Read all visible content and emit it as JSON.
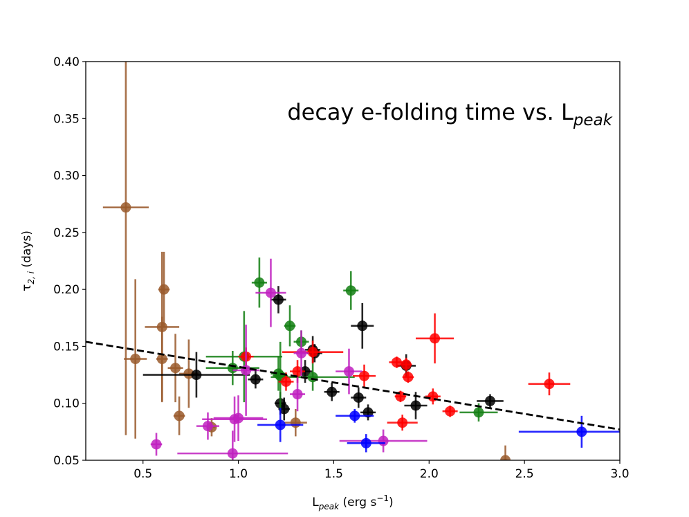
{
  "chart_data": {
    "type": "scatter",
    "title": "decay e-folding time vs. L",
    "title_subscript": "peak",
    "xlabel": "L",
    "xlabel_sub": "peak",
    "xlabel_units": " (erg s",
    "xlabel_sup": "−1",
    "xlabel_close": ")",
    "ylabel": "τ",
    "ylabel_sub": "2, i",
    "ylabel_units": " (days)",
    "xlim": [
      0.2,
      3.0
    ],
    "ylim": [
      0.05,
      0.4
    ],
    "xticks": [
      0.5,
      1.0,
      1.5,
      2.0,
      2.5,
      3.0
    ],
    "xtick_labels": [
      "0.5",
      "1.0",
      "1.5",
      "2.0",
      "2.5",
      "3.0"
    ],
    "yticks": [
      0.05,
      0.1,
      0.15,
      0.2,
      0.25,
      0.3,
      0.35,
      0.4
    ],
    "ytick_labels": [
      "0.05",
      "0.10",
      "0.15",
      "0.20",
      "0.25",
      "0.30",
      "0.35",
      "0.40"
    ],
    "fit_line": {
      "x": [
        0.2,
        3.0
      ],
      "y": [
        0.154,
        0.077
      ],
      "color": "#000000",
      "style": "dashed"
    },
    "series": [
      {
        "name": "brown",
        "color": "#9a5a2c",
        "points": [
          {
            "x": 0.41,
            "y": 0.272,
            "xerr": 0.12,
            "yerr": 0.2
          },
          {
            "x": 0.46,
            "y": 0.139,
            "xerr": 0.06,
            "yerr": 0.07
          },
          {
            "x": 0.61,
            "y": 0.2,
            "xerr": 0.03,
            "yerr": 0.033
          },
          {
            "x": 0.6,
            "y": 0.167,
            "xerr": 0.09,
            "yerr": 0.066
          },
          {
            "x": 0.6,
            "y": 0.139,
            "xerr": 0.03,
            "yerr": 0.037
          },
          {
            "x": 0.67,
            "y": 0.131,
            "xerr": 0.04,
            "yerr": 0.03
          },
          {
            "x": 0.74,
            "y": 0.126,
            "xerr": 0.05,
            "yerr": 0.03
          },
          {
            "x": 0.69,
            "y": 0.089,
            "xerr": 0.03,
            "yerr": 0.017
          },
          {
            "x": 0.86,
            "y": 0.079,
            "xerr": 0.02,
            "yerr": 0.008
          },
          {
            "x": 1.3,
            "y": 0.083,
            "xerr": 0.06,
            "yerr": 0.012
          },
          {
            "x": 2.4,
            "y": 0.05,
            "xerr": 0.01,
            "yerr": 0.013
          }
        ]
      },
      {
        "name": "black",
        "color": "#000000",
        "points": [
          {
            "x": 0.78,
            "y": 0.125,
            "xerr": 0.28,
            "yerr": 0.02
          },
          {
            "x": 1.09,
            "y": 0.121,
            "xerr": 0.04,
            "yerr": 0.008
          },
          {
            "x": 1.21,
            "y": 0.191,
            "xerr": 0.04,
            "yerr": 0.012
          },
          {
            "x": 1.22,
            "y": 0.1,
            "xerr": 0.03,
            "yerr": 0.01
          },
          {
            "x": 1.24,
            "y": 0.095,
            "xerr": 0.03,
            "yerr": 0.01
          },
          {
            "x": 1.35,
            "y": 0.128,
            "xerr": 0.04,
            "yerr": 0.01
          },
          {
            "x": 1.39,
            "y": 0.147,
            "xerr": 0.04,
            "yerr": 0.012
          },
          {
            "x": 1.4,
            "y": 0.144,
            "xerr": 0.04,
            "yerr": 0.008
          },
          {
            "x": 1.49,
            "y": 0.11,
            "xerr": 0.04,
            "yerr": 0.008
          },
          {
            "x": 1.63,
            "y": 0.105,
            "xerr": 0.04,
            "yerr": 0.009
          },
          {
            "x": 1.65,
            "y": 0.168,
            "xerr": 0.06,
            "yerr": 0.02
          },
          {
            "x": 1.68,
            "y": 0.092,
            "xerr": 0.04,
            "yerr": 0.007
          },
          {
            "x": 1.88,
            "y": 0.133,
            "xerr": 0.05,
            "yerr": 0.01
          },
          {
            "x": 1.93,
            "y": 0.098,
            "xerr": 0.06,
            "yerr": 0.012
          },
          {
            "x": 2.32,
            "y": 0.102,
            "xerr": 0.07,
            "yerr": 0.006
          }
        ]
      },
      {
        "name": "green",
        "color": "#137f13",
        "points": [
          {
            "x": 0.97,
            "y": 0.131,
            "xerr": 0.14,
            "yerr": 0.015
          },
          {
            "x": 1.03,
            "y": 0.141,
            "xerr": 0.2,
            "yerr": 0.04
          },
          {
            "x": 1.11,
            "y": 0.206,
            "xerr": 0.04,
            "yerr": 0.022
          },
          {
            "x": 1.21,
            "y": 0.126,
            "xerr": 0.04,
            "yerr": 0.015
          },
          {
            "x": 1.22,
            "y": 0.124,
            "xerr": 0.04,
            "yerr": 0.03
          },
          {
            "x": 1.27,
            "y": 0.168,
            "xerr": 0.03,
            "yerr": 0.018
          },
          {
            "x": 1.33,
            "y": 0.154,
            "xerr": 0.04,
            "yerr": 0.01
          },
          {
            "x": 1.39,
            "y": 0.123,
            "xerr": 0.22,
            "yerr": 0.012
          },
          {
            "x": 1.59,
            "y": 0.199,
            "xerr": 0.04,
            "yerr": 0.017
          },
          {
            "x": 2.26,
            "y": 0.092,
            "xerr": 0.1,
            "yerr": 0.008
          }
        ]
      },
      {
        "name": "red",
        "color": "#ff0000",
        "points": [
          {
            "x": 1.04,
            "y": 0.141,
            "xerr": 0.04,
            "yerr": 0.008
          },
          {
            "x": 1.25,
            "y": 0.119,
            "xerr": 0.04,
            "yerr": 0.008
          },
          {
            "x": 1.31,
            "y": 0.128,
            "xerr": 0.04,
            "yerr": 0.01
          },
          {
            "x": 1.39,
            "y": 0.145,
            "xerr": 0.16,
            "yerr": 0.01
          },
          {
            "x": 1.66,
            "y": 0.124,
            "xerr": 0.06,
            "yerr": 0.01
          },
          {
            "x": 1.83,
            "y": 0.136,
            "xerr": 0.04,
            "yerr": 0.005
          },
          {
            "x": 1.85,
            "y": 0.106,
            "xerr": 0.03,
            "yerr": 0.005
          },
          {
            "x": 1.86,
            "y": 0.083,
            "xerr": 0.08,
            "yerr": 0.007
          },
          {
            "x": 1.88,
            "y": 0.134,
            "xerr": 0.03,
            "yerr": 0.006
          },
          {
            "x": 1.89,
            "y": 0.123,
            "xerr": 0.03,
            "yerr": 0.005
          },
          {
            "x": 2.02,
            "y": 0.106,
            "xerr": 0.04,
            "yerr": 0.007
          },
          {
            "x": 2.03,
            "y": 0.157,
            "xerr": 0.1,
            "yerr": 0.022
          },
          {
            "x": 2.11,
            "y": 0.093,
            "xerr": 0.04,
            "yerr": 0.005
          },
          {
            "x": 2.63,
            "y": 0.117,
            "xerr": 0.11,
            "yerr": 0.01
          }
        ]
      },
      {
        "name": "magenta",
        "color": "#c020c0",
        "points": [
          {
            "x": 0.57,
            "y": 0.064,
            "xerr": 0.03,
            "yerr": 0.01
          },
          {
            "x": 0.84,
            "y": 0.08,
            "xerr": 0.06,
            "yerr": 0.012
          },
          {
            "x": 0.97,
            "y": 0.056,
            "xerr": 0.29,
            "yerr": 0.02
          },
          {
            "x": 0.98,
            "y": 0.086,
            "xerr": 0.17,
            "yerr": 0.02
          },
          {
            "x": 1.0,
            "y": 0.087,
            "xerr": 0.13,
            "yerr": 0.02
          },
          {
            "x": 1.04,
            "y": 0.129,
            "xerr": 0.07,
            "yerr": 0.04
          },
          {
            "x": 1.17,
            "y": 0.197,
            "xerr": 0.08,
            "yerr": 0.03
          },
          {
            "x": 1.31,
            "y": 0.108,
            "xerr": 0.04,
            "yerr": 0.015
          },
          {
            "x": 1.33,
            "y": 0.144,
            "xerr": 0.04,
            "yerr": 0.02
          },
          {
            "x": 1.58,
            "y": 0.128,
            "xerr": 0.07,
            "yerr": 0.02
          },
          {
            "x": 1.76,
            "y": 0.067,
            "xerr": 0.23,
            "yerr": 0.01
          }
        ]
      },
      {
        "name": "blue",
        "color": "#0000ff",
        "points": [
          {
            "x": 1.22,
            "y": 0.081,
            "xerr": 0.12,
            "yerr": 0.015
          },
          {
            "x": 1.61,
            "y": 0.089,
            "xerr": 0.1,
            "yerr": 0.006
          },
          {
            "x": 1.67,
            "y": 0.065,
            "xerr": 0.1,
            "yerr": 0.008
          },
          {
            "x": 2.8,
            "y": 0.075,
            "xerr": 0.33,
            "yerr": 0.014
          }
        ]
      }
    ]
  }
}
